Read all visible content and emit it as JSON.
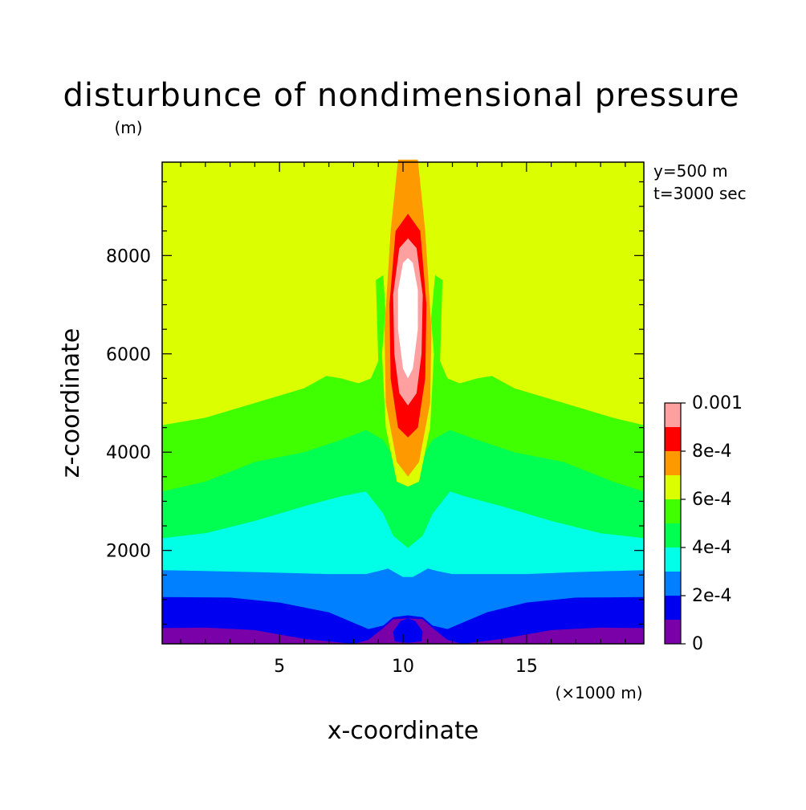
{
  "chart_data": {
    "type": "heatmap",
    "title": "disturbunce of nondimensional pressure",
    "xlabel": "x-coordinate",
    "ylabel": "z-coordinate",
    "x_unit": "(×1000 m)",
    "y_unit": "(m)",
    "annotations": [
      "y=500 m",
      "t=3000 sec"
    ],
    "xlim": [
      0.25,
      19.75
    ],
    "ylim": [
      100,
      9900
    ],
    "x_ticks": [
      5,
      10,
      15
    ],
    "y_ticks": [
      2000,
      4000,
      6000,
      8000
    ],
    "x_tick_labels": [
      "5",
      "10",
      "15"
    ],
    "y_tick_labels": [
      "2000",
      "4000",
      "6000",
      "8000"
    ],
    "levels": [
      0,
      0.0001,
      0.0002,
      0.0003,
      0.0004,
      0.0005,
      0.0006,
      0.0007,
      0.0008,
      0.0009,
      0.001
    ],
    "colorbar_labels": [
      "0",
      "2e-4",
      "4e-4",
      "6e-4",
      "8e-4",
      "0.001"
    ],
    "colors": [
      "#7a00a8",
      "#0000f0",
      "#0080ff",
      "#00ffe6",
      "#00ff50",
      "#40ff00",
      "#dcff00",
      "#ff9900",
      "#ff0000",
      "#ffa0a0",
      "#ffffff"
    ],
    "layers": [
      {
        "level": 0.0001,
        "background_z": 450
      },
      {
        "level": 0.0002,
        "background_z": 1050
      },
      {
        "level": 0.0003,
        "background_z": 1600
      },
      {
        "level": 0.0004,
        "background_z": 2250
      },
      {
        "level": 0.0005,
        "background_z": 3200
      },
      {
        "level": 0.0006,
        "background_z": 4550
      }
    ]
  }
}
